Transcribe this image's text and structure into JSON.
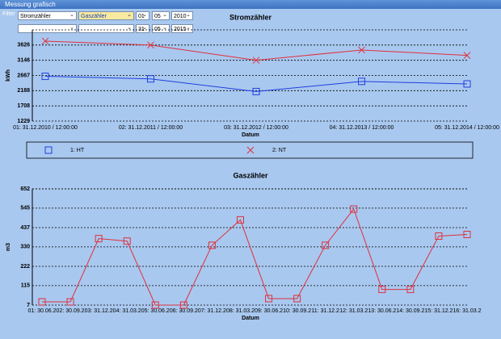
{
  "window_title": "Messung grafisch",
  "filter": {
    "label": "Filter",
    "row1": {
      "meter_a": "Stromzähler",
      "meter_b": "Gaszähler",
      "day": "01",
      "month": "05",
      "year": "2010"
    },
    "row2": {
      "day": "31",
      "month": "05",
      "year": "2015"
    }
  },
  "chart_data": [
    {
      "type": "line",
      "title": "Stromzähler",
      "x_label": "Datum",
      "y_label": "kWh",
      "grid": true,
      "legend": true,
      "categories": [
        "01: 31.12.2010 / 12:00:00",
        "02: 31.12.2011 / 12:00:00",
        "03: 31.12.2012 / 12:00:00",
        "04: 31.12.2013 / 12:00:00",
        "05: 31.12.2014 / 12:00:00"
      ],
      "series": [
        {
          "name": "1: HT",
          "color": "#1f3fe0",
          "marker": "square",
          "values": [
            2640,
            2560,
            2160,
            2480,
            2400
          ]
        },
        {
          "name": "2: NT",
          "color": "#e0303c",
          "marker": "x",
          "values": [
            3750,
            3626,
            3146,
            3470,
            3300
          ]
        }
      ],
      "ylim": [
        1229,
        4105
      ],
      "yticks": [
        1229,
        1708,
        2188,
        2667,
        3146,
        3626
      ]
    },
    {
      "type": "line",
      "title": "Gaszähler",
      "x_label": "Datum",
      "y_label": "m3",
      "grid": true,
      "legend": false,
      "categories": [
        "01: 30.06.2",
        "02: 30.09.2",
        "03: 31.12.2",
        "04: 31.03.2",
        "05: 30.06.2",
        "06: 30.09.2",
        "07: 31.12.2",
        "08: 31.03.2",
        "09: 30.06.2",
        "10: 30.09.2",
        "11: 31.12.2",
        "12: 31.03.2",
        "13: 30.06.2",
        "14: 30.09.2",
        "15: 31.12.2",
        "16: 31.03.2"
      ],
      "series": [
        {
          "color": "#e0303c",
          "marker": "square",
          "values": [
            25,
            25,
            376,
            362,
            7,
            7,
            339,
            480,
            43,
            43,
            339,
            540,
            94,
            94,
            390,
            399
          ]
        }
      ],
      "ylim": [
        7,
        652
      ],
      "yticks": [
        7,
        115,
        222,
        330,
        437,
        545,
        652
      ]
    }
  ]
}
